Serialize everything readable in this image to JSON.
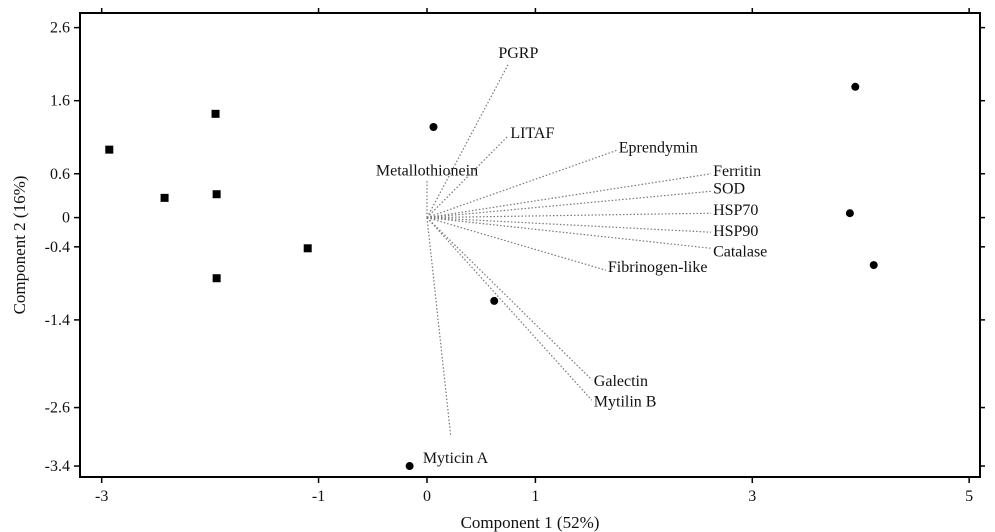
{
  "chart_data": {
    "type": "scatter",
    "title": "",
    "xlabel": "Component 1 (52%)",
    "ylabel": "Component 2 (16%)",
    "xlim": [
      -3.2,
      5.1
    ],
    "ylim": [
      -3.55,
      2.8
    ],
    "x_ticks": [
      {
        "value": -3,
        "label": "-3"
      },
      {
        "value": -1,
        "label": "-1"
      },
      {
        "value": 0,
        "label": "0"
      },
      {
        "value": 1,
        "label": "1"
      },
      {
        "value": 3,
        "label": "3"
      },
      {
        "value": 5,
        "label": "5"
      }
    ],
    "y_ticks": [
      {
        "value": 2.6,
        "label": "2.6"
      },
      {
        "value": 1.6,
        "label": "1.6"
      },
      {
        "value": 0.6,
        "label": "0.6"
      },
      {
        "value": 0,
        "label": "0"
      },
      {
        "value": -0.4,
        "label": "-0.4"
      },
      {
        "value": -1.4,
        "label": "-1.4"
      },
      {
        "value": -2.6,
        "label": "-2.6"
      },
      {
        "value": -3.4,
        "label": "-3.4"
      }
    ],
    "grid": false,
    "series": [
      {
        "marker": "square",
        "points": [
          {
            "x": -2.93,
            "y": 0.93
          },
          {
            "x": -2.42,
            "y": 0.27
          },
          {
            "x": -1.95,
            "y": 1.42
          },
          {
            "x": -1.94,
            "y": 0.32
          },
          {
            "x": -1.94,
            "y": -0.83
          },
          {
            "x": -1.1,
            "y": -0.42
          }
        ]
      },
      {
        "marker": "circle",
        "points": [
          {
            "x": 0.06,
            "y": 1.24
          },
          {
            "x": 0.62,
            "y": -1.14
          },
          {
            "x": -0.16,
            "y": -3.4
          },
          {
            "x": 3.9,
            "y": 0.06
          },
          {
            "x": 3.95,
            "y": 1.79
          },
          {
            "x": 4.12,
            "y": -0.65
          }
        ]
      }
    ],
    "loadings": [
      {
        "label": "PGRP",
        "x": 0.75,
        "y": 2.1
      },
      {
        "label": "LITAF",
        "x": 0.75,
        "y": 1.12
      },
      {
        "label": "Eprendymin",
        "x": 1.75,
        "y": 0.92
      },
      {
        "label": "Metallothionein",
        "x": 0.0,
        "y": 0.52
      },
      {
        "label": "Ferritin",
        "x": 2.62,
        "y": 0.6
      },
      {
        "label": "SOD",
        "x": 2.62,
        "y": 0.36
      },
      {
        "label": "HSP70",
        "x": 2.62,
        "y": 0.06
      },
      {
        "label": "HSP90",
        "x": 2.62,
        "y": -0.2
      },
      {
        "label": "Catalase",
        "x": 2.62,
        "y": -0.42
      },
      {
        "label": "Fibrinogen-like",
        "x": 1.65,
        "y": -0.72
      },
      {
        "label": "Galectin",
        "x": 1.52,
        "y": -2.22
      },
      {
        "label": "Mytilin B",
        "x": 1.52,
        "y": -2.5
      },
      {
        "label": "Myticin A",
        "x": 0.22,
        "y": -3.0
      }
    ]
  }
}
